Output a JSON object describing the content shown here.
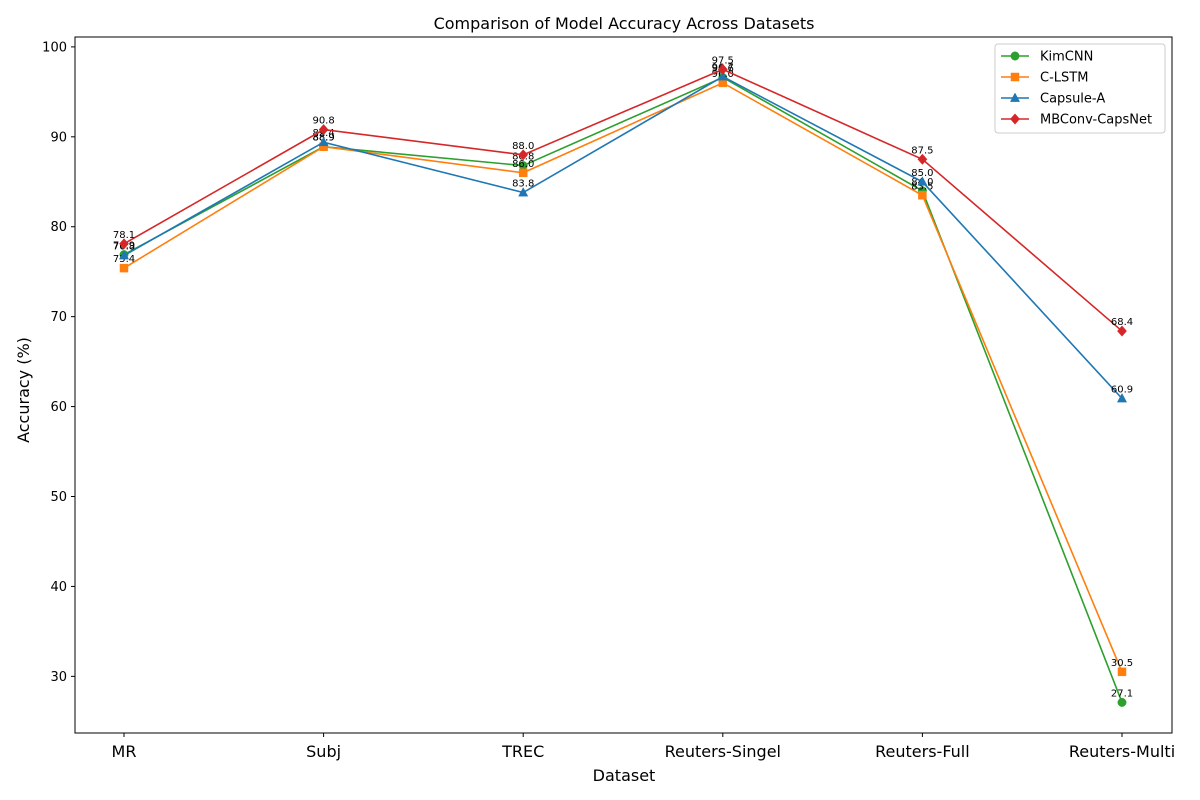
{
  "chart_data": {
    "type": "line",
    "title": "Comparison of Model Accuracy Across Datasets",
    "xlabel": "Dataset",
    "ylabel": "Accuracy (%)",
    "categories": [
      "MR",
      "Subj",
      "TREC",
      "Reuters-Singel",
      "Reuters-Full",
      "Reuters-Multi"
    ],
    "ylim": [
      23.7,
      101.1
    ],
    "yticks": [
      30,
      40,
      50,
      60,
      70,
      80,
      90,
      100
    ],
    "grid": false,
    "legend_position": "top-right",
    "series": [
      {
        "name": "KimCNN",
        "color": "#2ca02c",
        "marker": "circle",
        "values": [
          76.9,
          88.9,
          86.8,
          96.6,
          84.0,
          27.1
        ]
      },
      {
        "name": "C-LSTM",
        "color": "#ff7f0e",
        "marker": "square",
        "values": [
          75.4,
          88.9,
          86.0,
          96.0,
          83.5,
          30.5
        ]
      },
      {
        "name": "Capsule-A",
        "color": "#1f77b4",
        "marker": "triangle",
        "values": [
          76.8,
          89.4,
          83.8,
          96.7,
          85.0,
          60.9
        ]
      },
      {
        "name": "MBConv-CapsNet",
        "color": "#d62728",
        "marker": "diamond",
        "values": [
          78.1,
          90.8,
          88.0,
          97.5,
          87.5,
          68.4
        ]
      }
    ]
  }
}
